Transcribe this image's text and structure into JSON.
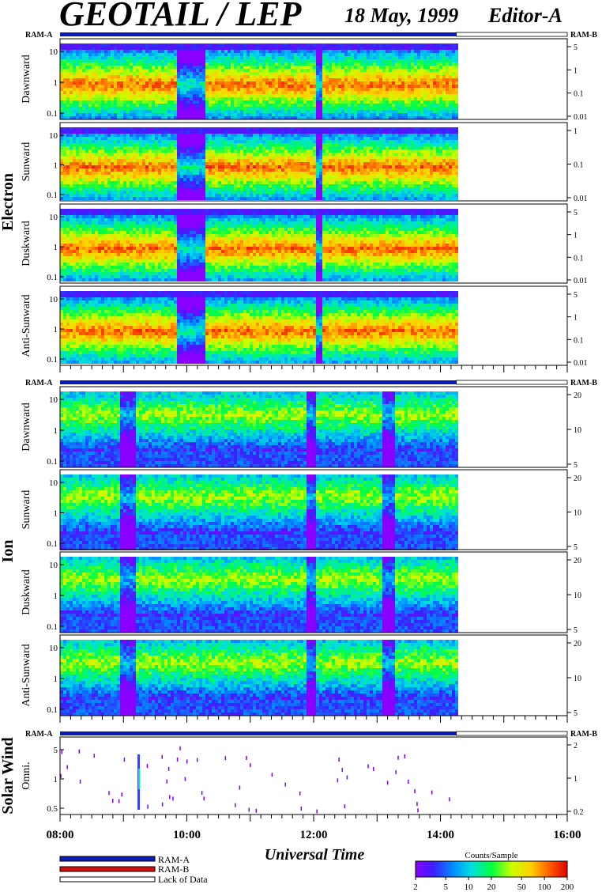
{
  "header": {
    "title": "GEOTAIL / LEP",
    "date": "18 May, 1999",
    "editor": "Editor-A"
  },
  "chart_data": {
    "type": "heatmap",
    "groups": [
      {
        "name": "Electron",
        "ram_left": "RAM-A",
        "ram_right": "RAM-B",
        "panels": [
          {
            "label": "Dawnward",
            "left_ticks": [
              "10",
              "1",
              "0.1"
            ],
            "right_ticks": [
              "5",
              "1",
              "0.1",
              "0.01"
            ]
          },
          {
            "label": "Sunward",
            "left_ticks": [
              "10",
              "1",
              "0.1"
            ],
            "right_ticks": [
              "1",
              "0.1",
              "0.01"
            ]
          },
          {
            "label": "Duskward",
            "left_ticks": [
              "10",
              "1",
              "0.1"
            ],
            "right_ticks": [
              "5",
              "1",
              "0.1",
              "0.01"
            ]
          },
          {
            "label": "Anti-Sunward",
            "left_ticks": [
              "10",
              "1",
              "0.1"
            ],
            "right_ticks": [
              "5",
              "1",
              "0.1",
              "0.01"
            ]
          }
        ]
      },
      {
        "name": "Ion",
        "ram_left": "RAM-A",
        "ram_right": "RAM-B",
        "panels": [
          {
            "label": "Dawnward",
            "left_ticks": [
              "10",
              "1",
              "0.1"
            ],
            "right_ticks": [
              "20",
              "10",
              "5"
            ]
          },
          {
            "label": "Sunward",
            "left_ticks": [
              "10",
              "1",
              "0.1"
            ],
            "right_ticks": [
              "20",
              "10",
              "5"
            ]
          },
          {
            "label": "Duskward",
            "left_ticks": [
              "10",
              "1",
              "0.1"
            ],
            "right_ticks": [
              "20",
              "10",
              "5"
            ]
          },
          {
            "label": "Anti-Sunward",
            "left_ticks": [
              "10",
              "1",
              "0.1"
            ],
            "right_ticks": [
              "20",
              "10",
              "5"
            ]
          }
        ]
      },
      {
        "name": "Solar Wind",
        "ram_left": "RAM-A",
        "ram_right": "RAM-B",
        "panels": [
          {
            "label": "Omni.",
            "left_ticks": [
              "5",
              "1",
              "0.5"
            ],
            "right_ticks": [
              "2",
              "1",
              "0.2"
            ]
          }
        ]
      }
    ],
    "x_axis": {
      "label": "Universal Time",
      "ticks": [
        "08:00",
        "10:00",
        "12:00",
        "14:00",
        "16:00"
      ],
      "range": [
        "08:00",
        "16:00"
      ],
      "data_end": "14:15"
    },
    "legend": {
      "items": [
        "RAM-A",
        "RAM-B",
        "Lack of Data"
      ],
      "colors": {
        "ram_a": "#0a1ab4",
        "ram_b": "#d01010",
        "lack": "#ffffff"
      }
    },
    "colorbar": {
      "title": "Counts/Sample",
      "ticks": [
        "2",
        "5",
        "10",
        "20",
        "50",
        "100",
        "200"
      ],
      "range": [
        2,
        200
      ],
      "scale": "log"
    }
  }
}
